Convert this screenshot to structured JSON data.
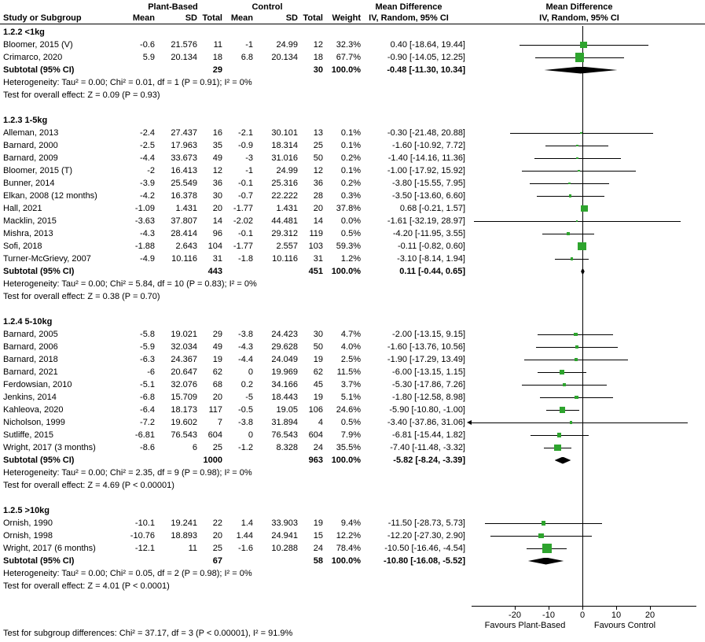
{
  "chart_data": {
    "type": "forest",
    "header": {
      "study": "Study or Subgroup",
      "group_plant": "Plant-Based",
      "group_control": "Control",
      "mean": "Mean",
      "sd": "SD",
      "total": "Total",
      "weight": "Weight",
      "mean_difference": "Mean Difference",
      "method": "IV, Random, 95% CI"
    },
    "colors": {
      "square": "#2EA42E",
      "diamond": "#000000",
      "line": "#000000",
      "text": "#000000",
      "background": "#FFFFFF"
    },
    "axis": {
      "ticks": [
        -20,
        -10,
        0,
        10,
        20
      ],
      "range": [
        -25,
        30
      ],
      "favours_left": "Favours Plant-Based",
      "favours_right": "Favours Control"
    },
    "subgroup_difference": "Test for subgroup differences: Chi² = 37.17, df = 3 (P < 0.00001), I² = 91.9%",
    "subgroups": [
      {
        "title": "1.2.2 <1kg",
        "studies": [
          {
            "study": "Bloomer, 2015 (V)",
            "plant": {
              "mean": "-0.6",
              "sd": "21.576",
              "total": "11"
            },
            "control": {
              "mean": "-1",
              "sd": "24.99",
              "total": "12"
            },
            "weight": 32.3,
            "est": 0.4,
            "lo": -18.64,
            "hi": 19.44
          },
          {
            "study": "Crimarco, 2020",
            "plant": {
              "mean": "5.9",
              "sd": "20.134",
              "total": "18"
            },
            "control": {
              "mean": "6.8",
              "sd": "20.134",
              "total": "18"
            },
            "weight": 67.7,
            "est": -0.9,
            "lo": -14.05,
            "hi": 12.25
          }
        ],
        "subtotal": {
          "label": "Subtotal (95% CI)",
          "plant_total": "29",
          "control_total": "30",
          "weight": 100.0,
          "est": -0.48,
          "lo": -11.3,
          "hi": 10.34
        },
        "heterogeneity": "Heterogeneity: Tau² = 0.00; Chi² = 0.01, df = 1 (P = 0.91); I² = 0%",
        "overall_effect": "Test for overall effect: Z = 0.09 (P = 0.93)"
      },
      {
        "title": "1.2.3 1-5kg",
        "studies": [
          {
            "study": "Alleman, 2013",
            "plant": {
              "mean": "-2.4",
              "sd": "27.437",
              "total": "16"
            },
            "control": {
              "mean": "-2.1",
              "sd": "30.101",
              "total": "13"
            },
            "weight": 0.1,
            "est": -0.3,
            "lo": -21.48,
            "hi": 20.88
          },
          {
            "study": "Barnard, 2000",
            "plant": {
              "mean": "-2.5",
              "sd": "17.963",
              "total": "35"
            },
            "control": {
              "mean": "-0.9",
              "sd": "18.314",
              "total": "25"
            },
            "weight": 0.1,
            "est": -1.6,
            "lo": -10.92,
            "hi": 7.72
          },
          {
            "study": "Barnard, 2009",
            "plant": {
              "mean": "-4.4",
              "sd": "33.673",
              "total": "49"
            },
            "control": {
              "mean": "-3",
              "sd": "31.016",
              "total": "50"
            },
            "weight": 0.2,
            "est": -1.4,
            "lo": -14.16,
            "hi": 11.36
          },
          {
            "study": "Bloomer, 2015 (T)",
            "plant": {
              "mean": "-2",
              "sd": "16.413",
              "total": "12"
            },
            "control": {
              "mean": "-1",
              "sd": "24.99",
              "total": "12"
            },
            "weight": 0.1,
            "est": -1.0,
            "lo": -17.92,
            "hi": 15.92
          },
          {
            "study": "Bunner, 2014",
            "plant": {
              "mean": "-3.9",
              "sd": "25.549",
              "total": "36"
            },
            "control": {
              "mean": "-0.1",
              "sd": "25.316",
              "total": "36"
            },
            "weight": 0.2,
            "est": -3.8,
            "lo": -15.55,
            "hi": 7.95
          },
          {
            "study": "Elkan, 2008 (12 months)",
            "plant": {
              "mean": "-4.2",
              "sd": "16.378",
              "total": "30"
            },
            "control": {
              "mean": "-0.7",
              "sd": "22.222",
              "total": "28"
            },
            "weight": 0.3,
            "est": -3.5,
            "lo": -13.6,
            "hi": 6.6
          },
          {
            "study": "Hall, 2021",
            "plant": {
              "mean": "-1.09",
              "sd": "1.431",
              "total": "20"
            },
            "control": {
              "mean": "-1.77",
              "sd": "1.431",
              "total": "20"
            },
            "weight": 37.8,
            "est": 0.68,
            "lo": -0.21,
            "hi": 1.57
          },
          {
            "study": "Macklin, 2015",
            "plant": {
              "mean": "-3.63",
              "sd": "37.807",
              "total": "14"
            },
            "control": {
              "mean": "-2.02",
              "sd": "44.481",
              "total": "14"
            },
            "weight": 0.0,
            "est": -1.61,
            "lo": -32.19,
            "hi": 28.97
          },
          {
            "study": "Mishra, 2013",
            "plant": {
              "mean": "-4.3",
              "sd": "28.414",
              "total": "96"
            },
            "control": {
              "mean": "-0.1",
              "sd": "29.312",
              "total": "119"
            },
            "weight": 0.5,
            "est": -4.2,
            "lo": -11.95,
            "hi": 3.55
          },
          {
            "study": "Sofi, 2018",
            "plant": {
              "mean": "-1.88",
              "sd": "2.643",
              "total": "104"
            },
            "control": {
              "mean": "-1.77",
              "sd": "2.557",
              "total": "103"
            },
            "weight": 59.3,
            "est": -0.11,
            "lo": -0.82,
            "hi": 0.6
          },
          {
            "study": "Turner-McGrievy, 2007",
            "plant": {
              "mean": "-4.9",
              "sd": "10.116",
              "total": "31"
            },
            "control": {
              "mean": "-1.8",
              "sd": "10.116",
              "total": "31"
            },
            "weight": 1.2,
            "est": -3.1,
            "lo": -8.14,
            "hi": 1.94
          }
        ],
        "subtotal": {
          "label": "Subtotal (95% CI)",
          "plant_total": "443",
          "control_total": "451",
          "weight": 100.0,
          "est": 0.11,
          "lo": -0.44,
          "hi": 0.65
        },
        "heterogeneity": "Heterogeneity: Tau² = 0.00; Chi² = 5.84, df = 10 (P = 0.83); I² = 0%",
        "overall_effect": "Test for overall effect: Z = 0.38 (P = 0.70)"
      },
      {
        "title": "1.2.4 5-10kg",
        "studies": [
          {
            "study": "Barnard, 2005",
            "plant": {
              "mean": "-5.8",
              "sd": "19.021",
              "total": "29"
            },
            "control": {
              "mean": "-3.8",
              "sd": "24.423",
              "total": "30"
            },
            "weight": 4.7,
            "est": -2.0,
            "lo": -13.15,
            "hi": 9.15
          },
          {
            "study": "Barnard, 2006",
            "plant": {
              "mean": "-5.9",
              "sd": "32.034",
              "total": "49"
            },
            "control": {
              "mean": "-4.3",
              "sd": "29.628",
              "total": "50"
            },
            "weight": 4.0,
            "est": -1.6,
            "lo": -13.76,
            "hi": 10.56
          },
          {
            "study": "Barnard, 2018",
            "plant": {
              "mean": "-6.3",
              "sd": "24.367",
              "total": "19"
            },
            "control": {
              "mean": "-4.4",
              "sd": "24.049",
              "total": "19"
            },
            "weight": 2.5,
            "est": -1.9,
            "lo": -17.29,
            "hi": 13.49
          },
          {
            "study": "Barnard, 2021",
            "plant": {
              "mean": "-6",
              "sd": "20.647",
              "total": "62"
            },
            "control": {
              "mean": "0",
              "sd": "19.969",
              "total": "62"
            },
            "weight": 11.5,
            "est": -6.0,
            "lo": -13.15,
            "hi": 1.15
          },
          {
            "study": "Ferdowsian, 2010",
            "plant": {
              "mean": "-5.1",
              "sd": "32.076",
              "total": "68"
            },
            "control": {
              "mean": "0.2",
              "sd": "34.166",
              "total": "45"
            },
            "weight": 3.7,
            "est": -5.3,
            "lo": -17.86,
            "hi": 7.26
          },
          {
            "study": "Jenkins, 2014",
            "plant": {
              "mean": "-6.8",
              "sd": "15.709",
              "total": "20"
            },
            "control": {
              "mean": "-5",
              "sd": "18.443",
              "total": "19"
            },
            "weight": 5.1,
            "est": -1.8,
            "lo": -12.58,
            "hi": 8.98
          },
          {
            "study": "Kahleova, 2020",
            "plant": {
              "mean": "-6.4",
              "sd": "18.173",
              "total": "117"
            },
            "control": {
              "mean": "-0.5",
              "sd": "19.05",
              "total": "106"
            },
            "weight": 24.6,
            "est": -5.9,
            "lo": -10.8,
            "hi": -1.0
          },
          {
            "study": "Nicholson, 1999",
            "plant": {
              "mean": "-7.2",
              "sd": "19.602",
              "total": "7"
            },
            "control": {
              "mean": "-3.8",
              "sd": "31.894",
              "total": "4"
            },
            "weight": 0.5,
            "est": -3.4,
            "lo": -37.86,
            "hi": 31.06
          },
          {
            "study": "Sutliffe, 2015",
            "plant": {
              "mean": "-6.81",
              "sd": "76.543",
              "total": "604"
            },
            "control": {
              "mean": "0",
              "sd": "76.543",
              "total": "604"
            },
            "weight": 7.9,
            "est": -6.81,
            "lo": -15.44,
            "hi": 1.82
          },
          {
            "study": "Wright, 2017 (3 months)",
            "plant": {
              "mean": "-8.6",
              "sd": "6",
              "total": "25"
            },
            "control": {
              "mean": "-1.2",
              "sd": "8.328",
              "total": "24"
            },
            "weight": 35.5,
            "est": -7.4,
            "lo": -11.48,
            "hi": -3.32
          }
        ],
        "subtotal": {
          "label": "Subtotal (95% CI)",
          "plant_total": "1000",
          "control_total": "963",
          "weight": 100.0,
          "est": -5.82,
          "lo": -8.24,
          "hi": -3.39
        },
        "heterogeneity": "Heterogeneity: Tau² = 0.00; Chi² = 2.35, df = 9 (P = 0.98); I² = 0%",
        "overall_effect": "Test for overall effect: Z = 4.69 (P < 0.00001)"
      },
      {
        "title": "1.2.5 >10kg",
        "studies": [
          {
            "study": "Ornish, 1990",
            "plant": {
              "mean": "-10.1",
              "sd": "19.241",
              "total": "22"
            },
            "control": {
              "mean": "1.4",
              "sd": "33.903",
              "total": "19"
            },
            "weight": 9.4,
            "est": -11.5,
            "lo": -28.73,
            "hi": 5.73
          },
          {
            "study": "Ornish, 1998",
            "plant": {
              "mean": "-10.76",
              "sd": "18.893",
              "total": "20"
            },
            "control": {
              "mean": "1.44",
              "sd": "24.941",
              "total": "15"
            },
            "weight": 12.2,
            "est": -12.2,
            "lo": -27.3,
            "hi": 2.9
          },
          {
            "study": "Wright, 2017 (6 months)",
            "plant": {
              "mean": "-12.1",
              "sd": "11",
              "total": "25"
            },
            "control": {
              "mean": "-1.6",
              "sd": "10.288",
              "total": "24"
            },
            "weight": 78.4,
            "est": -10.5,
            "lo": -16.46,
            "hi": -4.54
          }
        ],
        "subtotal": {
          "label": "Subtotal (95% CI)",
          "plant_total": "67",
          "control_total": "58",
          "weight": 100.0,
          "est": -10.8,
          "lo": -16.08,
          "hi": -5.52
        },
        "heterogeneity": "Heterogeneity: Tau² = 0.00; Chi² = 0.05, df = 2 (P = 0.98); I² = 0%",
        "overall_effect": "Test for overall effect: Z = 4.01 (P < 0.0001)"
      }
    ]
  }
}
